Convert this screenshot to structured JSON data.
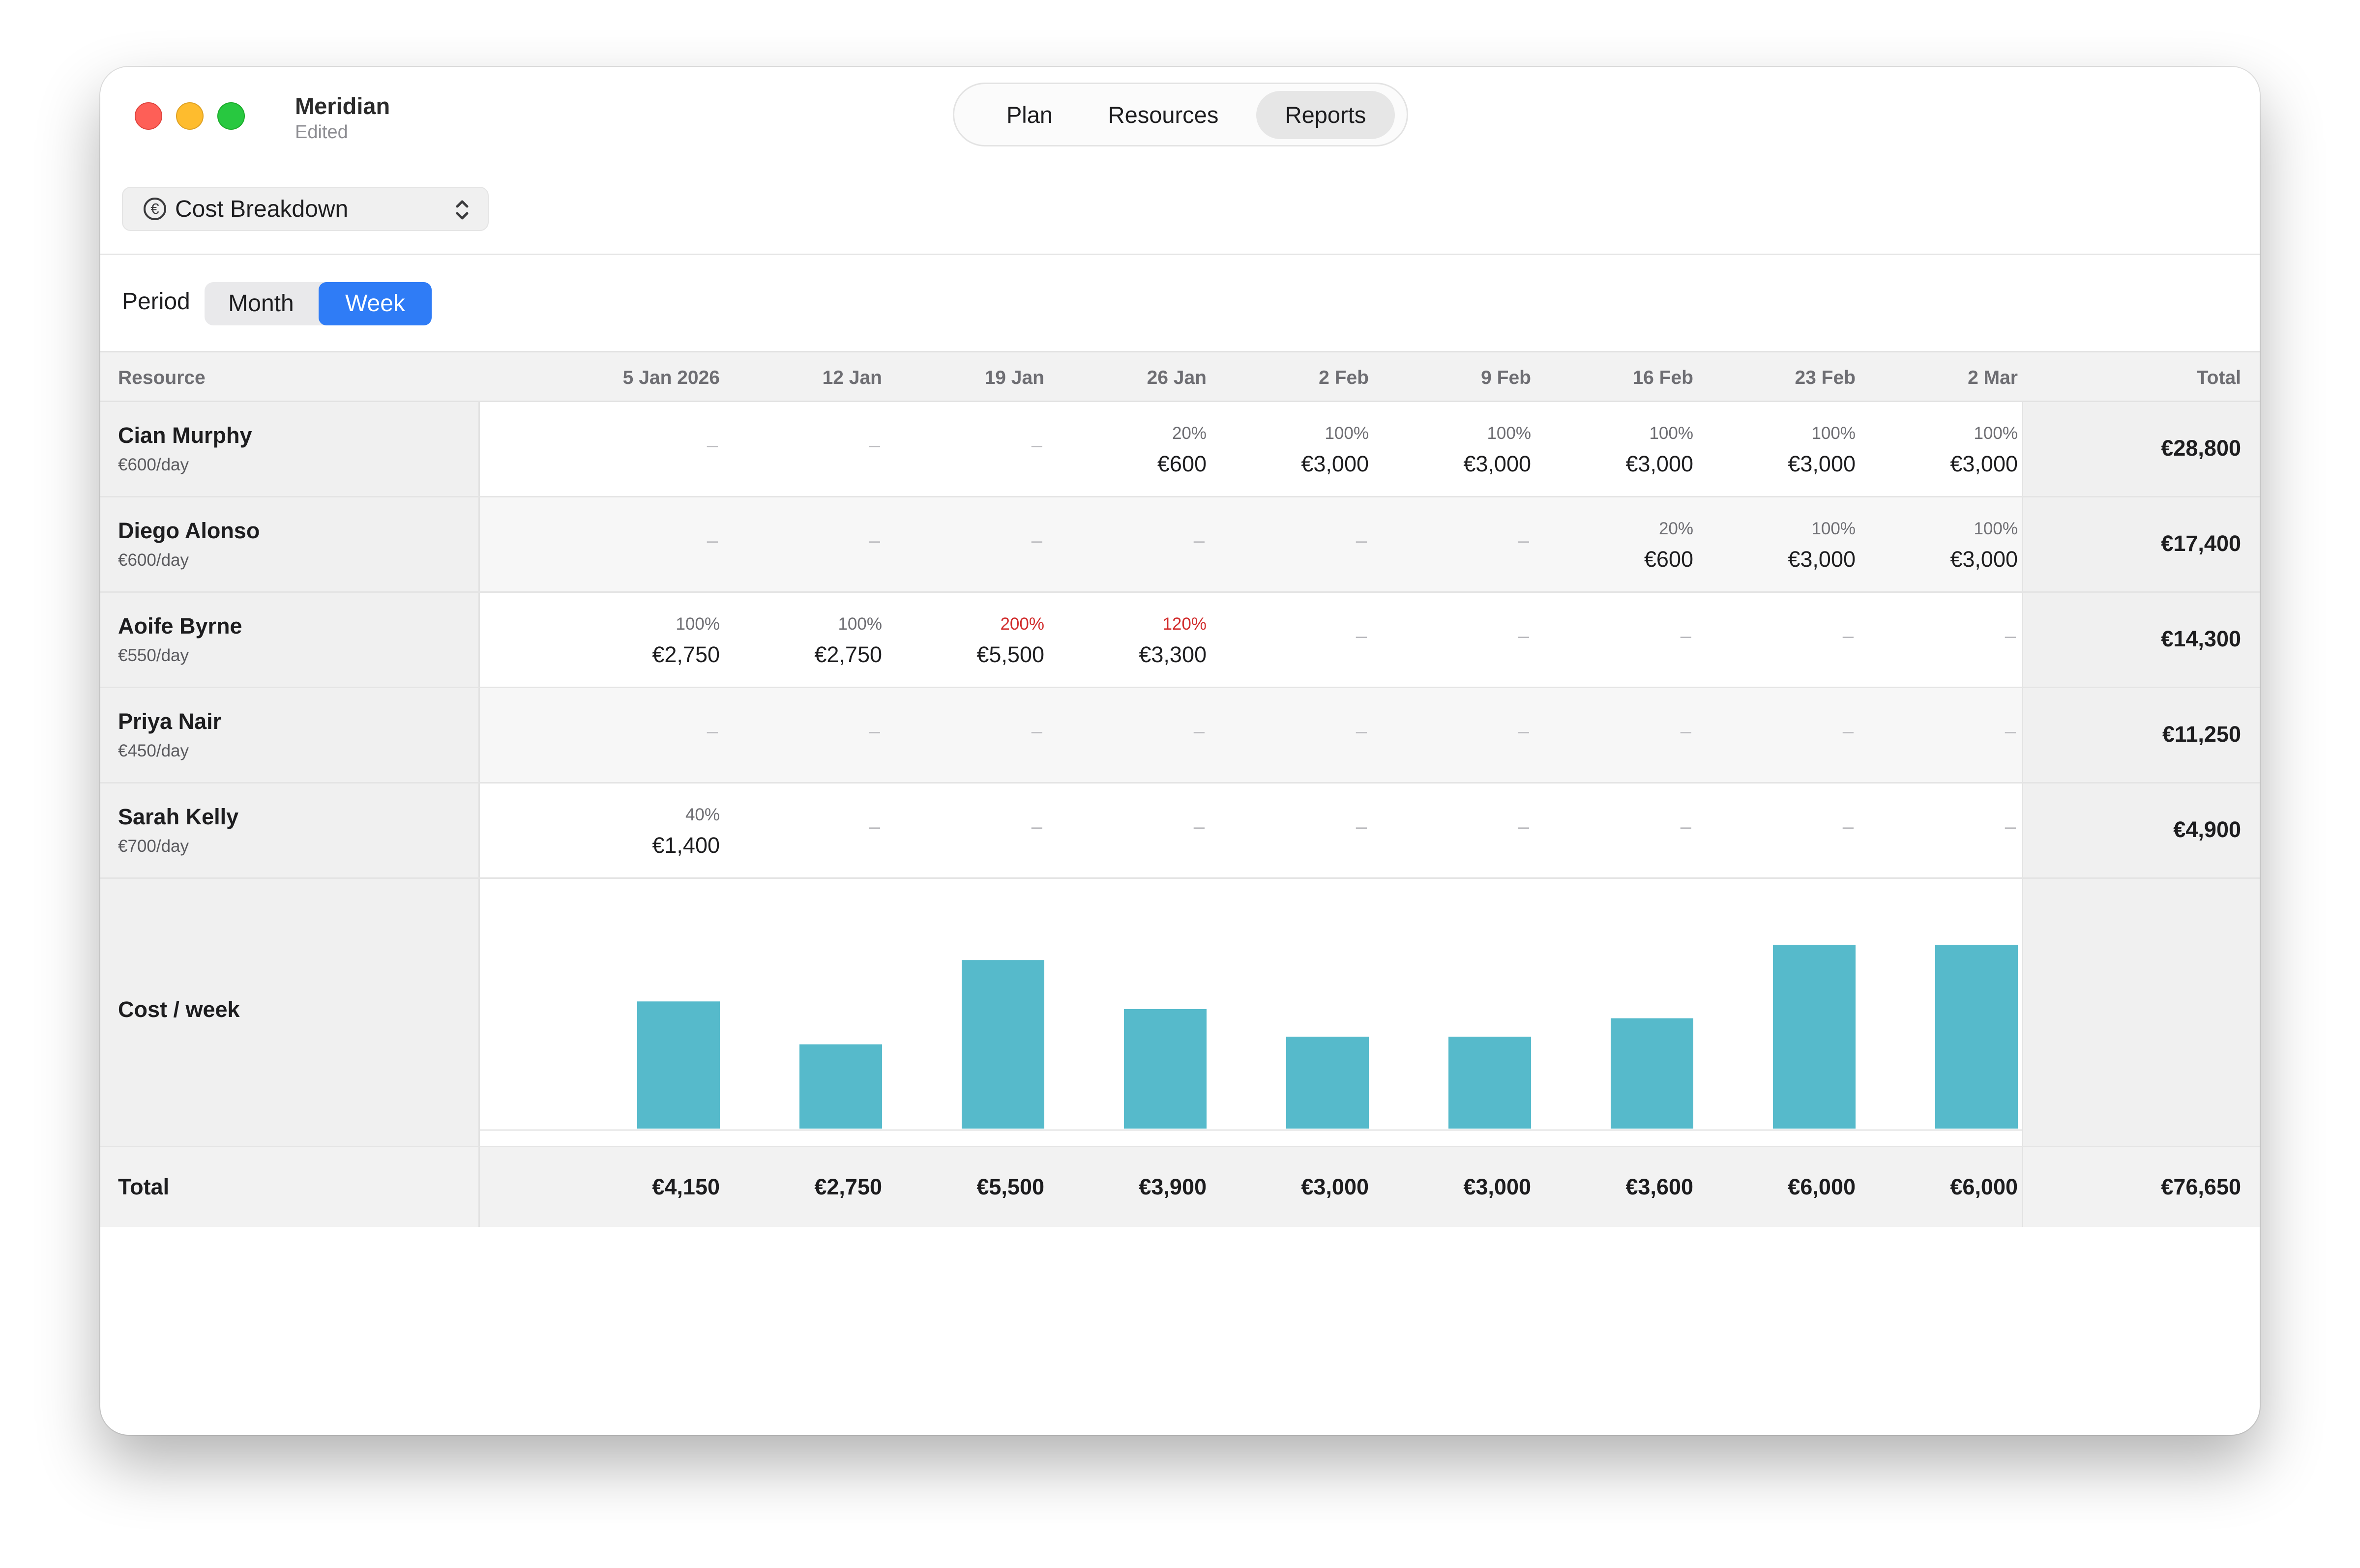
{
  "app": {
    "title": "Meridian",
    "subtitle": "Edited"
  },
  "nav_tabs": [
    {
      "label": "Plan",
      "selected": false
    },
    {
      "label": "Resources",
      "selected": false
    },
    {
      "label": "Reports",
      "selected": true
    }
  ],
  "report_selector": {
    "icon": "euro-circle-icon",
    "value": "Cost Breakdown"
  },
  "period": {
    "label": "Period",
    "options": [
      {
        "label": "Month",
        "selected": false
      },
      {
        "label": "Week",
        "selected": true
      }
    ]
  },
  "table": {
    "resource_header": "Resource",
    "total_header": "Total",
    "weeks": [
      "5 Jan 2026",
      "12 Jan",
      "19 Jan",
      "26 Jan",
      "2 Feb",
      "9 Feb",
      "16 Feb",
      "23 Feb",
      "2 Mar"
    ],
    "rows": [
      {
        "name": "Cian Murphy",
        "rate": "€600/day",
        "total": "€28,800",
        "cells": [
          null,
          null,
          null,
          {
            "pct": "20%",
            "amount": "€600"
          },
          {
            "pct": "100%",
            "amount": "€3,000"
          },
          {
            "pct": "100%",
            "amount": "€3,000"
          },
          {
            "pct": "100%",
            "amount": "€3,000"
          },
          {
            "pct": "100%",
            "amount": "€3,000"
          },
          {
            "pct": "100%",
            "amount": "€3,000"
          }
        ]
      },
      {
        "name": "Diego Alonso",
        "rate": "€600/day",
        "total": "€17,400",
        "cells": [
          null,
          null,
          null,
          null,
          null,
          null,
          {
            "pct": "20%",
            "amount": "€600"
          },
          {
            "pct": "100%",
            "amount": "€3,000"
          },
          {
            "pct": "100%",
            "amount": "€3,000"
          }
        ]
      },
      {
        "name": "Aoife Byrne",
        "rate": "€550/day",
        "total": "€14,300",
        "cells": [
          {
            "pct": "100%",
            "amount": "€2,750"
          },
          {
            "pct": "100%",
            "amount": "€2,750"
          },
          {
            "pct": "200%",
            "amount": "€5,500",
            "over": true
          },
          {
            "pct": "120%",
            "amount": "€3,300",
            "over": true
          },
          null,
          null,
          null,
          null,
          null
        ]
      },
      {
        "name": "Priya Nair",
        "rate": "€450/day",
        "total": "€11,250",
        "cells": [
          null,
          null,
          null,
          null,
          null,
          null,
          null,
          null,
          null
        ]
      },
      {
        "name": "Sarah Kelly",
        "rate": "€700/day",
        "total": "€4,900",
        "cells": [
          {
            "pct": "40%",
            "amount": "€1,400"
          },
          null,
          null,
          null,
          null,
          null,
          null,
          null,
          null
        ]
      }
    ],
    "empty_marker": "–",
    "over_allocation_color": "#d12b2b",
    "chart_row_label": "Cost / week",
    "totals_label": "Total",
    "week_totals": [
      "€4,150",
      "€2,750",
      "€5,500",
      "€3,900",
      "€3,000",
      "€3,000",
      "€3,600",
      "€6,000",
      "€6,000"
    ],
    "grand_total": "€76,650"
  },
  "chart_data": {
    "type": "bar",
    "categories": [
      "5 Jan 2026",
      "12 Jan",
      "19 Jan",
      "26 Jan",
      "2 Feb",
      "9 Feb",
      "16 Feb",
      "23 Feb",
      "2 Mar"
    ],
    "values": [
      4150,
      2750,
      5500,
      3900,
      3000,
      3000,
      3600,
      6000,
      6000
    ],
    "bar_color": "#56bacb",
    "title": "",
    "xlabel": "",
    "ylabel": ""
  }
}
